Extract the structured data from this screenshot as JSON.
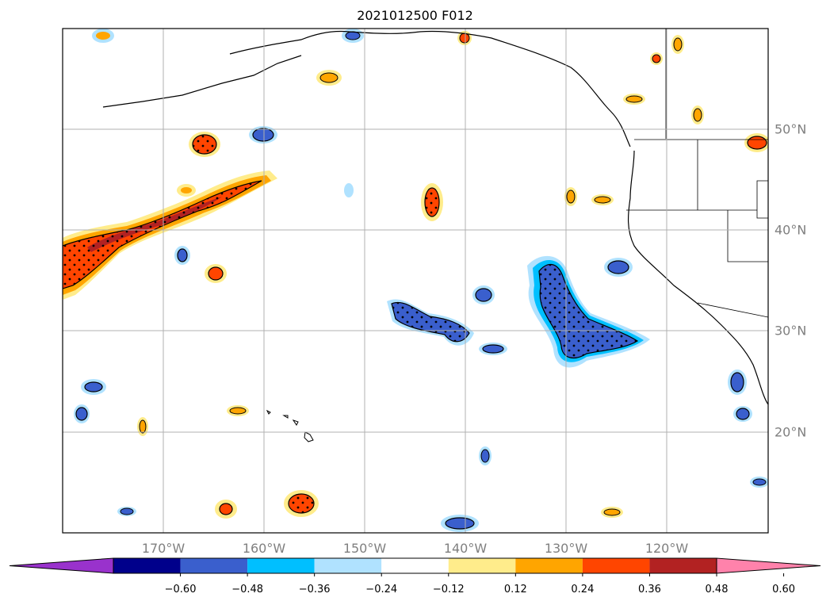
{
  "title": "2021012500 F012",
  "lon_labels": [
    "170°W",
    "160°W",
    "150°W",
    "140°W",
    "130°W",
    "120°W"
  ],
  "lat_labels": [
    "50°N",
    "40°N",
    "30°N",
    "20°N"
  ],
  "colorbar": {
    "tick_labels": [
      "−0.60",
      "−0.48",
      "−0.36",
      "−0.24",
      "−0.12",
      "0.12",
      "0.24",
      "0.36",
      "0.48",
      "0.60"
    ],
    "colors": [
      "#9932CC",
      "#00008B",
      "#3A5FCD",
      "#00BFFF",
      "#B0E2FF",
      "#FFFFFF",
      "#FFEC8B",
      "#FFA500",
      "#FF4500",
      "#B22222",
      "#FF82AB"
    ],
    "extend": "both"
  },
  "map": {
    "projection": "equirectangular",
    "lon_range": [
      -180,
      -110
    ],
    "lat_range": [
      10,
      60
    ],
    "grid": true,
    "stippling": true
  }
}
